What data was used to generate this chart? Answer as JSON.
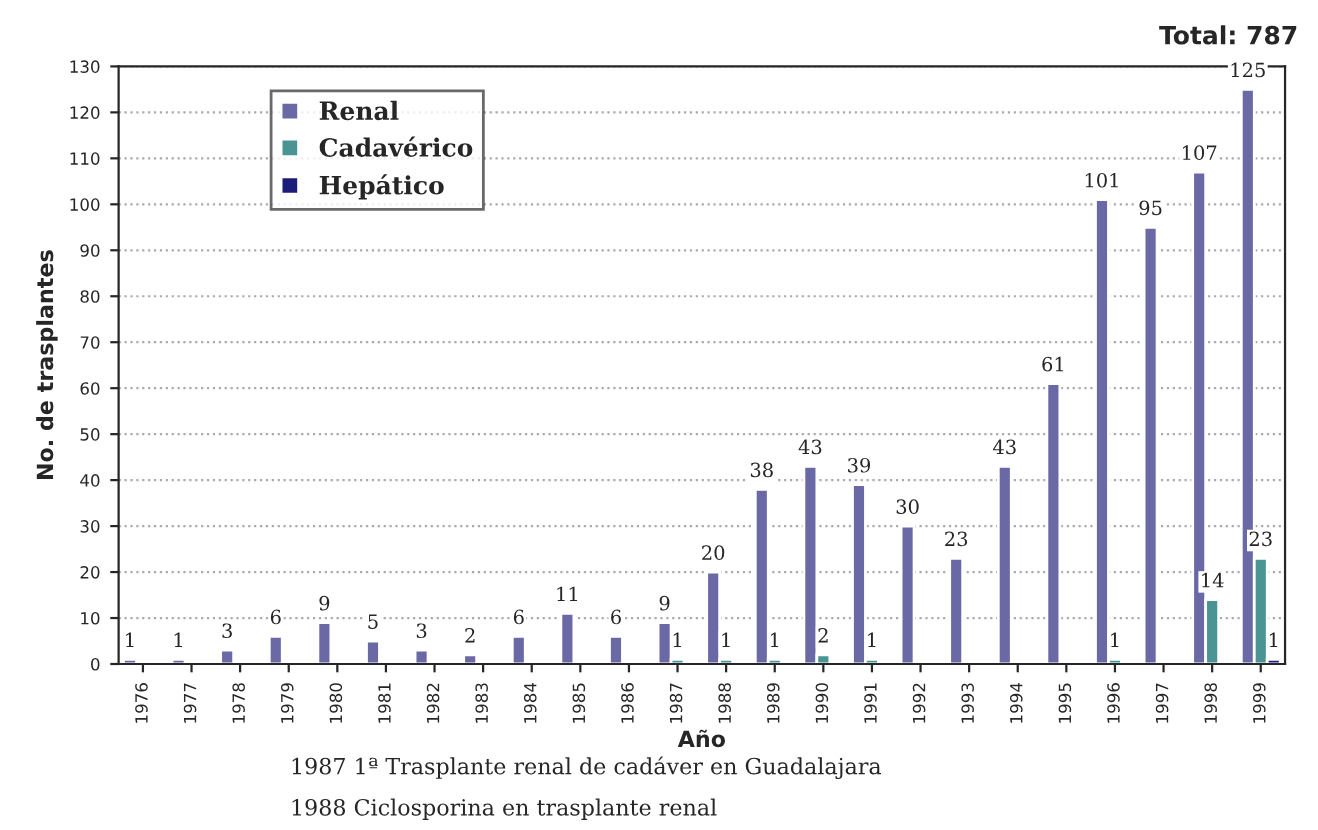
{
  "chart_data": {
    "type": "bar",
    "xlabel": "Año",
    "ylabel": "No. de trasplantes",
    "categories": [
      "1976",
      "1977",
      "1978",
      "1979",
      "1980",
      "1981",
      "1982",
      "1983",
      "1984",
      "1985",
      "1986",
      "1987",
      "1988",
      "1989",
      "1990",
      "1991",
      "1992",
      "1993",
      "1994",
      "1995",
      "1996",
      "1997",
      "1998",
      "1999"
    ],
    "series": [
      {
        "name": "Renal",
        "color": "#6a69a6",
        "values": [
          1,
          1,
          3,
          6,
          9,
          5,
          3,
          2,
          6,
          11,
          6,
          9,
          20,
          38,
          43,
          39,
          30,
          23,
          43,
          61,
          101,
          95,
          107,
          125
        ]
      },
      {
        "name": "Cadavérico",
        "color": "#4a9494",
        "values": [
          null,
          null,
          null,
          null,
          null,
          null,
          null,
          null,
          null,
          null,
          null,
          1,
          1,
          1,
          2,
          1,
          null,
          null,
          null,
          null,
          1,
          null,
          14,
          23
        ]
      },
      {
        "name": "Hepático",
        "color": "#1c1c7a",
        "values": [
          null,
          null,
          null,
          null,
          null,
          null,
          null,
          null,
          null,
          null,
          null,
          null,
          null,
          null,
          null,
          null,
          null,
          null,
          null,
          null,
          null,
          null,
          null,
          1
        ]
      }
    ],
    "ylim": [
      0,
      130
    ],
    "yticks": [
      0,
      10,
      20,
      30,
      40,
      50,
      60,
      70,
      80,
      90,
      100,
      110,
      120,
      130
    ],
    "grid": "y",
    "legend": "top left",
    "data_labels": true,
    "annotations": [
      "Total: 787",
      "1987 1ª Trasplante renal de cadáver en Guadalajara",
      "1988 Ciclosporina en trasplante renal"
    ]
  }
}
